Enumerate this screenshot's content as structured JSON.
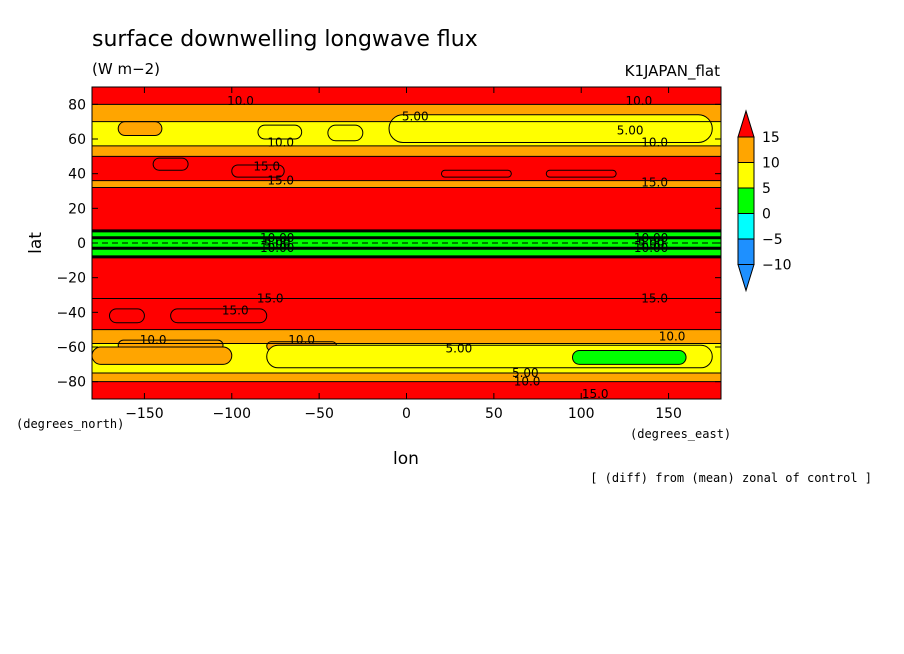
{
  "chart_data": {
    "type": "heatmap",
    "title": "surface downwelling longwave flux",
    "units": "(W m−2)",
    "experiment": "K1JAPAN_flat",
    "xlabel": "lon",
    "ylabel": "lat",
    "x_units_label": "(degrees_east)",
    "y_units_label": "(degrees_north)",
    "footnote": "[ (diff) from (mean) zonal of control ]",
    "xlim": [
      -180,
      180
    ],
    "ylim": [
      -90,
      90
    ],
    "x_ticks": [
      -150,
      -100,
      -50,
      0,
      50,
      100,
      150
    ],
    "x_tick_labels": [
      "−150",
      "−100",
      "−50",
      "0",
      "50",
      "100",
      "150"
    ],
    "y_ticks": [
      -80,
      -60,
      -40,
      -20,
      0,
      20,
      40,
      60,
      80
    ],
    "y_tick_labels": [
      "−80",
      "−60",
      "−40",
      "−20",
      "0",
      "20",
      "40",
      "60",
      "80"
    ],
    "colorbar": {
      "levels": [
        -10,
        -5,
        0,
        5,
        10,
        15
      ],
      "labels": [
        "−10",
        "−5",
        "0",
        "5",
        "10",
        "15"
      ],
      "colors": [
        "#1e90ff",
        "#00ffff",
        "#00ff00",
        "#ffff00",
        "#ffa500",
        "#ff0000"
      ],
      "extend": "both"
    },
    "latitude_bands": [
      {
        "lat_min": 80,
        "lat_max": 90,
        "value": 10
      },
      {
        "lat_min": 70,
        "lat_max": 80,
        "value": 7
      },
      {
        "lat_min": 56,
        "lat_max": 70,
        "value": 4
      },
      {
        "lat_min": 50,
        "lat_max": 56,
        "value": 7
      },
      {
        "lat_min": 36,
        "lat_max": 50,
        "value": 12
      },
      {
        "lat_min": 32,
        "lat_max": 36,
        "value": 8
      },
      {
        "lat_min": 7,
        "lat_max": 32,
        "value": 18
      },
      {
        "lat_min": 3,
        "lat_max": 7,
        "value": -2
      },
      {
        "lat_min": -3,
        "lat_max": 3,
        "value": -4
      },
      {
        "lat_min": -8,
        "lat_max": 3,
        "value": -2
      },
      {
        "lat_min": -32,
        "lat_max": -8,
        "value": 18
      },
      {
        "lat_min": -50,
        "lat_max": -32,
        "value": 12
      },
      {
        "lat_min": -58,
        "lat_max": -50,
        "value": 8
      },
      {
        "lat_min": -75,
        "lat_max": -58,
        "value": 4
      },
      {
        "lat_min": -80,
        "lat_max": -75,
        "value": 7
      },
      {
        "lat_min": -90,
        "lat_max": -80,
        "value": 12
      }
    ],
    "patches": [
      {
        "lon_min": -165,
        "lon_max": -140,
        "lat_min": 62,
        "lat_max": 70,
        "value": 7
      },
      {
        "lon_min": -85,
        "lon_max": -60,
        "lat_min": 60,
        "lat_max": 68,
        "value": 3
      },
      {
        "lon_min": -45,
        "lon_max": -25,
        "lat_min": 59,
        "lat_max": 68,
        "value": 3
      },
      {
        "lon_min": -10,
        "lon_max": 175,
        "lat_min": 58,
        "lat_max": 74,
        "value": 3
      },
      {
        "lon_min": -145,
        "lon_max": -125,
        "lat_min": 42,
        "lat_max": 49,
        "value": 16
      },
      {
        "lon_min": -100,
        "lon_max": -70,
        "lat_min": 38,
        "lat_max": 45,
        "value": 16
      },
      {
        "lon_min": 20,
        "lon_max": 60,
        "lat_min": 38,
        "lat_max": 42,
        "value": 16
      },
      {
        "lon_min": 80,
        "lon_max": 120,
        "lat_min": 38,
        "lat_max": 42,
        "value": 16
      },
      {
        "lon_min": -170,
        "lon_max": -150,
        "lat_min": -46,
        "lat_max": -38,
        "value": 16
      },
      {
        "lon_min": -135,
        "lon_max": -80,
        "lat_min": -46,
        "lat_max": -38,
        "value": 16
      },
      {
        "lon_min": -165,
        "lon_max": -105,
        "lat_min": -62,
        "lat_max": -56,
        "value": 7
      },
      {
        "lon_min": -80,
        "lon_max": -40,
        "lat_min": -62,
        "lat_max": -57,
        "value": 7
      },
      {
        "lon_min": -80,
        "lon_max": 175,
        "lat_min": -72,
        "lat_max": -59,
        "value": 2
      },
      {
        "lon_min": 95,
        "lon_max": 160,
        "lat_min": -70,
        "lat_max": -62,
        "value": -1
      },
      {
        "lon_min": -180,
        "lon_max": -100,
        "lat_min": -70,
        "lat_max": -60,
        "value": 7
      }
    ],
    "contour_labels": [
      {
        "text": "10.0",
        "lon": -95,
        "lat": 82
      },
      {
        "text": "10.0",
        "lon": 133,
        "lat": 82
      },
      {
        "text": "5.00",
        "lon": 5,
        "lat": 73
      },
      {
        "text": "5.00",
        "lon": 128,
        "lat": 65
      },
      {
        "text": "10.0",
        "lon": 142,
        "lat": 58
      },
      {
        "text": "10.0",
        "lon": -72,
        "lat": 58
      },
      {
        "text": "15.0",
        "lon": -80,
        "lat": 44
      },
      {
        "text": "15.0",
        "lon": -72,
        "lat": 36
      },
      {
        "text": "15.0",
        "lon": 142,
        "lat": 35
      },
      {
        "text": "15.0",
        "lon": -78,
        "lat": -32
      },
      {
        "text": "15.0",
        "lon": 142,
        "lat": -32
      },
      {
        "text": "15.0",
        "lon": -98,
        "lat": -39
      },
      {
        "text": "10.0",
        "lon": -145,
        "lat": -56
      },
      {
        "text": "10.0",
        "lon": -60,
        "lat": -56
      },
      {
        "text": "10.0",
        "lon": 152,
        "lat": -54
      },
      {
        "text": "5.00",
        "lon": 30,
        "lat": -61
      },
      {
        "text": "5.00",
        "lon": 68,
        "lat": -75
      },
      {
        "text": "10.0",
        "lon": 69,
        "lat": -80
      },
      {
        "text": "15.0",
        "lon": 108,
        "lat": -87
      },
      {
        "text": "10.00",
        "lon": -74,
        "lat": 3
      },
      {
        "text": "5.00",
        "lon": -74,
        "lat": 1
      },
      {
        "text": "5.00",
        "lon": -74,
        "lat": -1
      },
      {
        "text": "10.00",
        "lon": -74,
        "lat": -3
      },
      {
        "text": "10.00",
        "lon": 140,
        "lat": 3
      },
      {
        "text": "5.00",
        "lon": 140,
        "lat": 1
      },
      {
        "text": "5.00",
        "lon": 140,
        "lat": -1
      },
      {
        "text": "10.00",
        "lon": 140,
        "lat": -3
      }
    ]
  }
}
